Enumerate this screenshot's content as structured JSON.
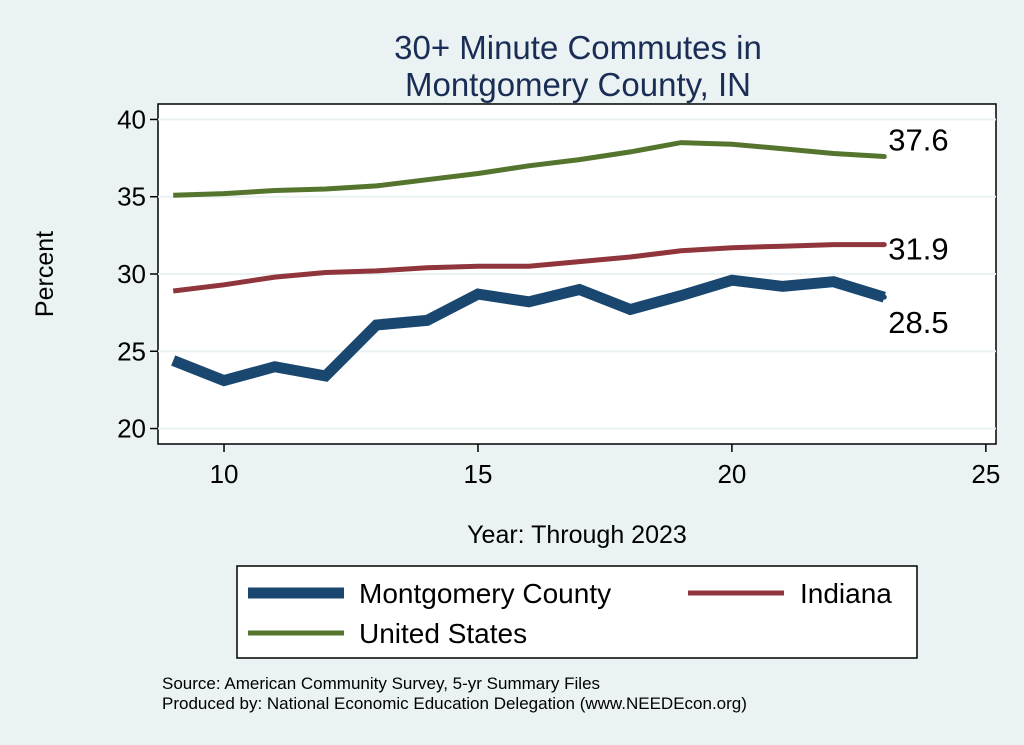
{
  "chart_data": {
    "type": "line",
    "title_lines": [
      "30+ Minute Commutes in",
      "Montgomery County, IN"
    ],
    "xlabel": "Year: Through 2023",
    "ylabel": "Percent",
    "xlim": [
      8.7,
      25.2
    ],
    "ylim": [
      19.0,
      41.0
    ],
    "xticks": [
      10,
      15,
      20,
      25
    ],
    "yticks": [
      20,
      25,
      30,
      35,
      40
    ],
    "grid": true,
    "legend_position": "bottom",
    "x": [
      9,
      10,
      11,
      12,
      13,
      14,
      15,
      16,
      17,
      18,
      19,
      20,
      21,
      22,
      23
    ],
    "series": [
      {
        "name": "Montgomery County",
        "color": "#1a476f",
        "values": [
          24.4,
          23.1,
          24.0,
          23.4,
          26.7,
          27.0,
          28.7,
          28.2,
          29.0,
          27.7,
          28.6,
          29.6,
          29.2,
          29.5,
          28.5
        ],
        "end_label": "28.5"
      },
      {
        "name": "Indiana",
        "color": "#90353b",
        "values": [
          28.9,
          29.3,
          29.8,
          30.1,
          30.2,
          30.4,
          30.5,
          30.5,
          30.8,
          31.1,
          31.5,
          31.7,
          31.8,
          31.9,
          31.9
        ],
        "end_label": "31.9"
      },
      {
        "name": "United States",
        "color": "#55752f",
        "values": [
          35.1,
          35.2,
          35.4,
          35.5,
          35.7,
          36.1,
          36.5,
          37.0,
          37.4,
          37.9,
          38.5,
          38.4,
          38.1,
          37.8,
          37.6
        ],
        "end_label": "37.6"
      }
    ]
  },
  "footer": {
    "source": "Source: American Community Survey, 5-yr Summary Files",
    "produced_by": "Produced by: National Economic Education Delegation (www.NEEDEcon.org)"
  }
}
